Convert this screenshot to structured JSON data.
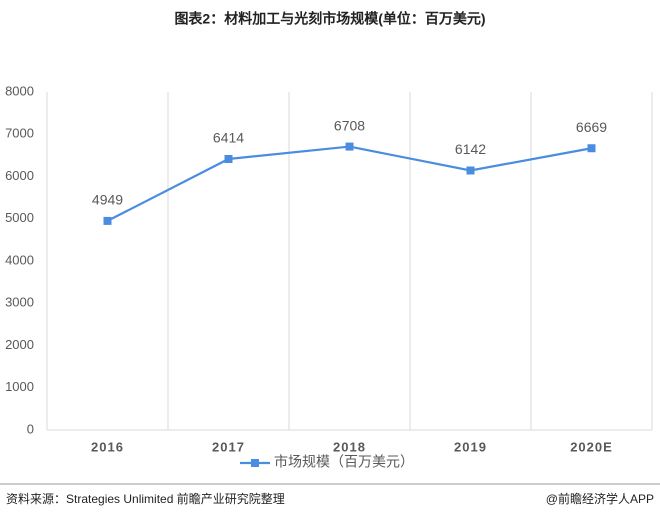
{
  "chart_data": {
    "type": "line",
    "title": "图表2：材料加工与光刻市场规模(单位：百万美元)",
    "categories": [
      "2016",
      "2017",
      "2018",
      "2019",
      "2020E"
    ],
    "series": [
      {
        "name": "市场规模（百万美元）",
        "color": "#4a8de0",
        "values": [
          4949,
          6414,
          6708,
          6142,
          6669
        ]
      }
    ],
    "ylim": [
      0,
      8000
    ],
    "yticks": [
      0,
      1000,
      2000,
      3000,
      4000,
      5000,
      6000,
      7000,
      8000
    ],
    "data_labels": true,
    "legend": "bottom",
    "source": "资料来源：Strategies Unlimited 前瞻产业研究院整理",
    "credit": "@前瞻经济学人APP"
  }
}
